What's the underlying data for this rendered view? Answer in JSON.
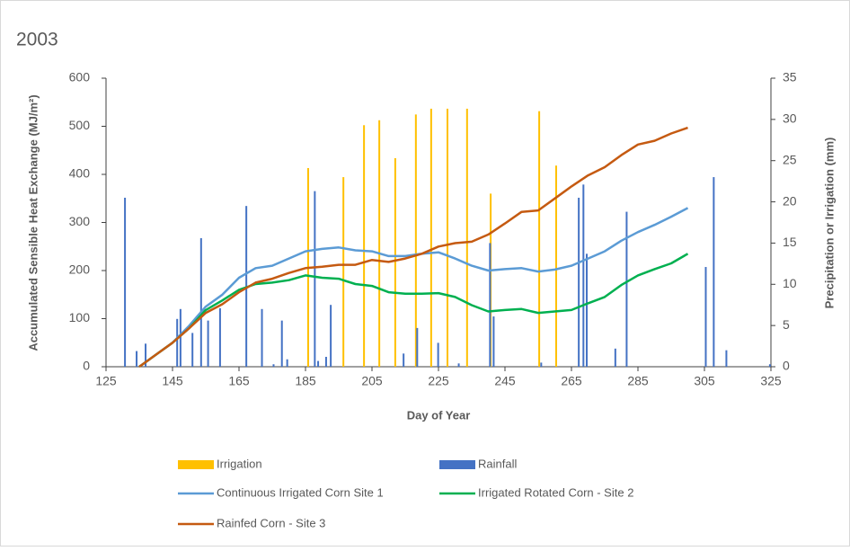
{
  "chart_data": {
    "type": "combo",
    "title": "2003",
    "x_label": "Day of Year",
    "y_label": "Accumulated Sensible Heat Exchange  (MJ/m²)",
    "y2_label": "Precipitation or Irrigation (mm)",
    "xlim": [
      125,
      325
    ],
    "xticks": [
      125,
      145,
      165,
      185,
      205,
      225,
      245,
      265,
      285,
      305,
      325
    ],
    "ylim": [
      0,
      600
    ],
    "yticks": [
      0,
      100,
      200,
      300,
      400,
      500,
      600
    ],
    "y2lim": [
      0,
      35
    ],
    "y2ticks": [
      0,
      5,
      10,
      15,
      20,
      25,
      30,
      35
    ],
    "series": [
      {
        "name": "Irrigation",
        "type": "bar",
        "axis": "y2",
        "color": "#ffc000",
        "x": [
          185.8,
          196.4,
          202.6,
          207.2,
          212,
          218.2,
          222.8,
          227.7,
          233.6,
          240.7,
          255.3,
          260.4
        ],
        "values": [
          24.1,
          23,
          29.3,
          29.9,
          25.3,
          30.6,
          31.3,
          31.3,
          31.3,
          21,
          31,
          24.4
        ]
      },
      {
        "name": "Rainfall",
        "type": "bar",
        "axis": "y2",
        "color": "#4472c4",
        "x": [
          130.7,
          134.2,
          136.9,
          146.4,
          147.4,
          151,
          153.6,
          155.7,
          159.3,
          167.2,
          171.9,
          175.4,
          177.9,
          179.5,
          187.8,
          188.8,
          191.2,
          192.6,
          214.5,
          218.6,
          224.9,
          231.1,
          240.5,
          241.6,
          255.9,
          267.2,
          268.6,
          269.6,
          278.2,
          281.6,
          305.4,
          307.8,
          311.6,
          324.7
        ],
        "values": [
          20.5,
          1.9,
          2.8,
          5.8,
          7,
          4.1,
          15.6,
          5.6,
          7.1,
          19.5,
          7,
          0.3,
          5.6,
          0.9,
          21.3,
          0.7,
          1.2,
          7.5,
          1.6,
          4.7,
          2.9,
          0.4,
          15,
          6.1,
          0.5,
          20.5,
          22.1,
          13.7,
          2.2,
          18.8,
          12.1,
          23,
          2,
          0.3
        ]
      },
      {
        "name": "Continuous Irrigated Corn  Site 1",
        "type": "line",
        "color": "#5b9bd5",
        "x": [
          135,
          140,
          145,
          150,
          155,
          160,
          165,
          170,
          175,
          180,
          185,
          190,
          195,
          200,
          205,
          210,
          215,
          220,
          225,
          230,
          235,
          240,
          245,
          250,
          255,
          260,
          265,
          270,
          275,
          280,
          285,
          290,
          295,
          300
        ],
        "values": [
          0,
          25,
          50,
          85,
          125,
          150,
          185,
          205,
          210,
          225,
          240,
          245,
          248,
          242,
          240,
          230,
          230,
          235,
          238,
          225,
          210,
          200,
          203,
          205,
          198,
          202,
          210,
          225,
          240,
          262,
          280,
          295,
          312,
          330
        ]
      },
      {
        "name": "Irrigated Rotated Corn - Site 2",
        "type": "line",
        "color": "#00b050",
        "x": [
          135,
          140,
          145,
          150,
          155,
          160,
          165,
          170,
          175,
          180,
          185,
          190,
          195,
          200,
          205,
          210,
          215,
          220,
          225,
          230,
          235,
          240,
          245,
          250,
          255,
          260,
          265,
          270,
          275,
          280,
          285,
          290,
          295,
          300
        ],
        "values": [
          0,
          25,
          50,
          80,
          118,
          138,
          160,
          172,
          175,
          180,
          190,
          185,
          183,
          172,
          168,
          155,
          152,
          152,
          153,
          145,
          128,
          115,
          118,
          120,
          112,
          115,
          118,
          132,
          145,
          170,
          190,
          203,
          215,
          235
        ]
      },
      {
        "name": "Rainfed Corn - Site 3",
        "type": "line",
        "color": "#c55a11",
        "x": [
          135,
          140,
          145,
          150,
          155,
          160,
          165,
          170,
          175,
          180,
          185,
          190,
          195,
          200,
          205,
          210,
          215,
          220,
          225,
          230,
          235,
          240,
          245,
          250,
          255,
          260,
          265,
          270,
          275,
          280,
          285,
          290,
          295,
          300
        ],
        "values": [
          0,
          25,
          50,
          80,
          112,
          130,
          155,
          175,
          183,
          195,
          205,
          208,
          212,
          212,
          222,
          218,
          225,
          235,
          250,
          257,
          260,
          275,
          298,
          322,
          325,
          350,
          375,
          398,
          415,
          440,
          462,
          470,
          485,
          497
        ]
      }
    ]
  }
}
